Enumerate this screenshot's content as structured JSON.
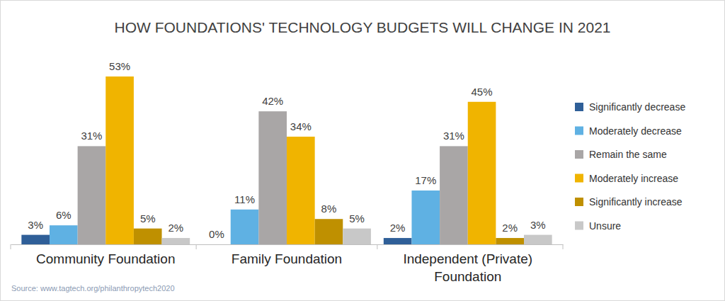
{
  "chart_data": {
    "type": "bar",
    "title": "HOW FOUNDATIONS' TECHNOLOGY BUDGETS WILL CHANGE IN 2021",
    "source": "Source: www.tagtech.org/philanthropytech2020",
    "categories": [
      "Community Foundation",
      "Family Foundation",
      "Independent (Private) Foundation"
    ],
    "series": [
      {
        "name": "Significantly decrease",
        "color": "#2f5f98",
        "values": [
          3,
          0,
          2
        ],
        "value_labels": [
          "3%",
          "0%",
          "2%"
        ]
      },
      {
        "name": "Moderately decrease",
        "color": "#5fb1e3",
        "values": [
          6,
          11,
          17
        ],
        "value_labels": [
          "6%",
          "11%",
          "17%"
        ]
      },
      {
        "name": "Remain the same",
        "color": "#a9a6a6",
        "values": [
          31,
          42,
          31
        ],
        "value_labels": [
          "31%",
          "42%",
          "31%"
        ]
      },
      {
        "name": "Moderately increase",
        "color": "#f0b400",
        "values": [
          53,
          34,
          45
        ],
        "value_labels": [
          "53%",
          "34%",
          "45%"
        ]
      },
      {
        "name": "Significantly increase",
        "color": "#bf9000",
        "values": [
          5,
          8,
          2
        ],
        "value_labels": [
          "5%",
          "8%",
          "2%"
        ]
      },
      {
        "name": "Unsure",
        "color": "#c8c8c8",
        "values": [
          2,
          5,
          3
        ],
        "value_labels": [
          "2%",
          "5%",
          "3%"
        ]
      }
    ],
    "data_labels": true,
    "tick_labels": "x",
    "legend": "right"
  }
}
